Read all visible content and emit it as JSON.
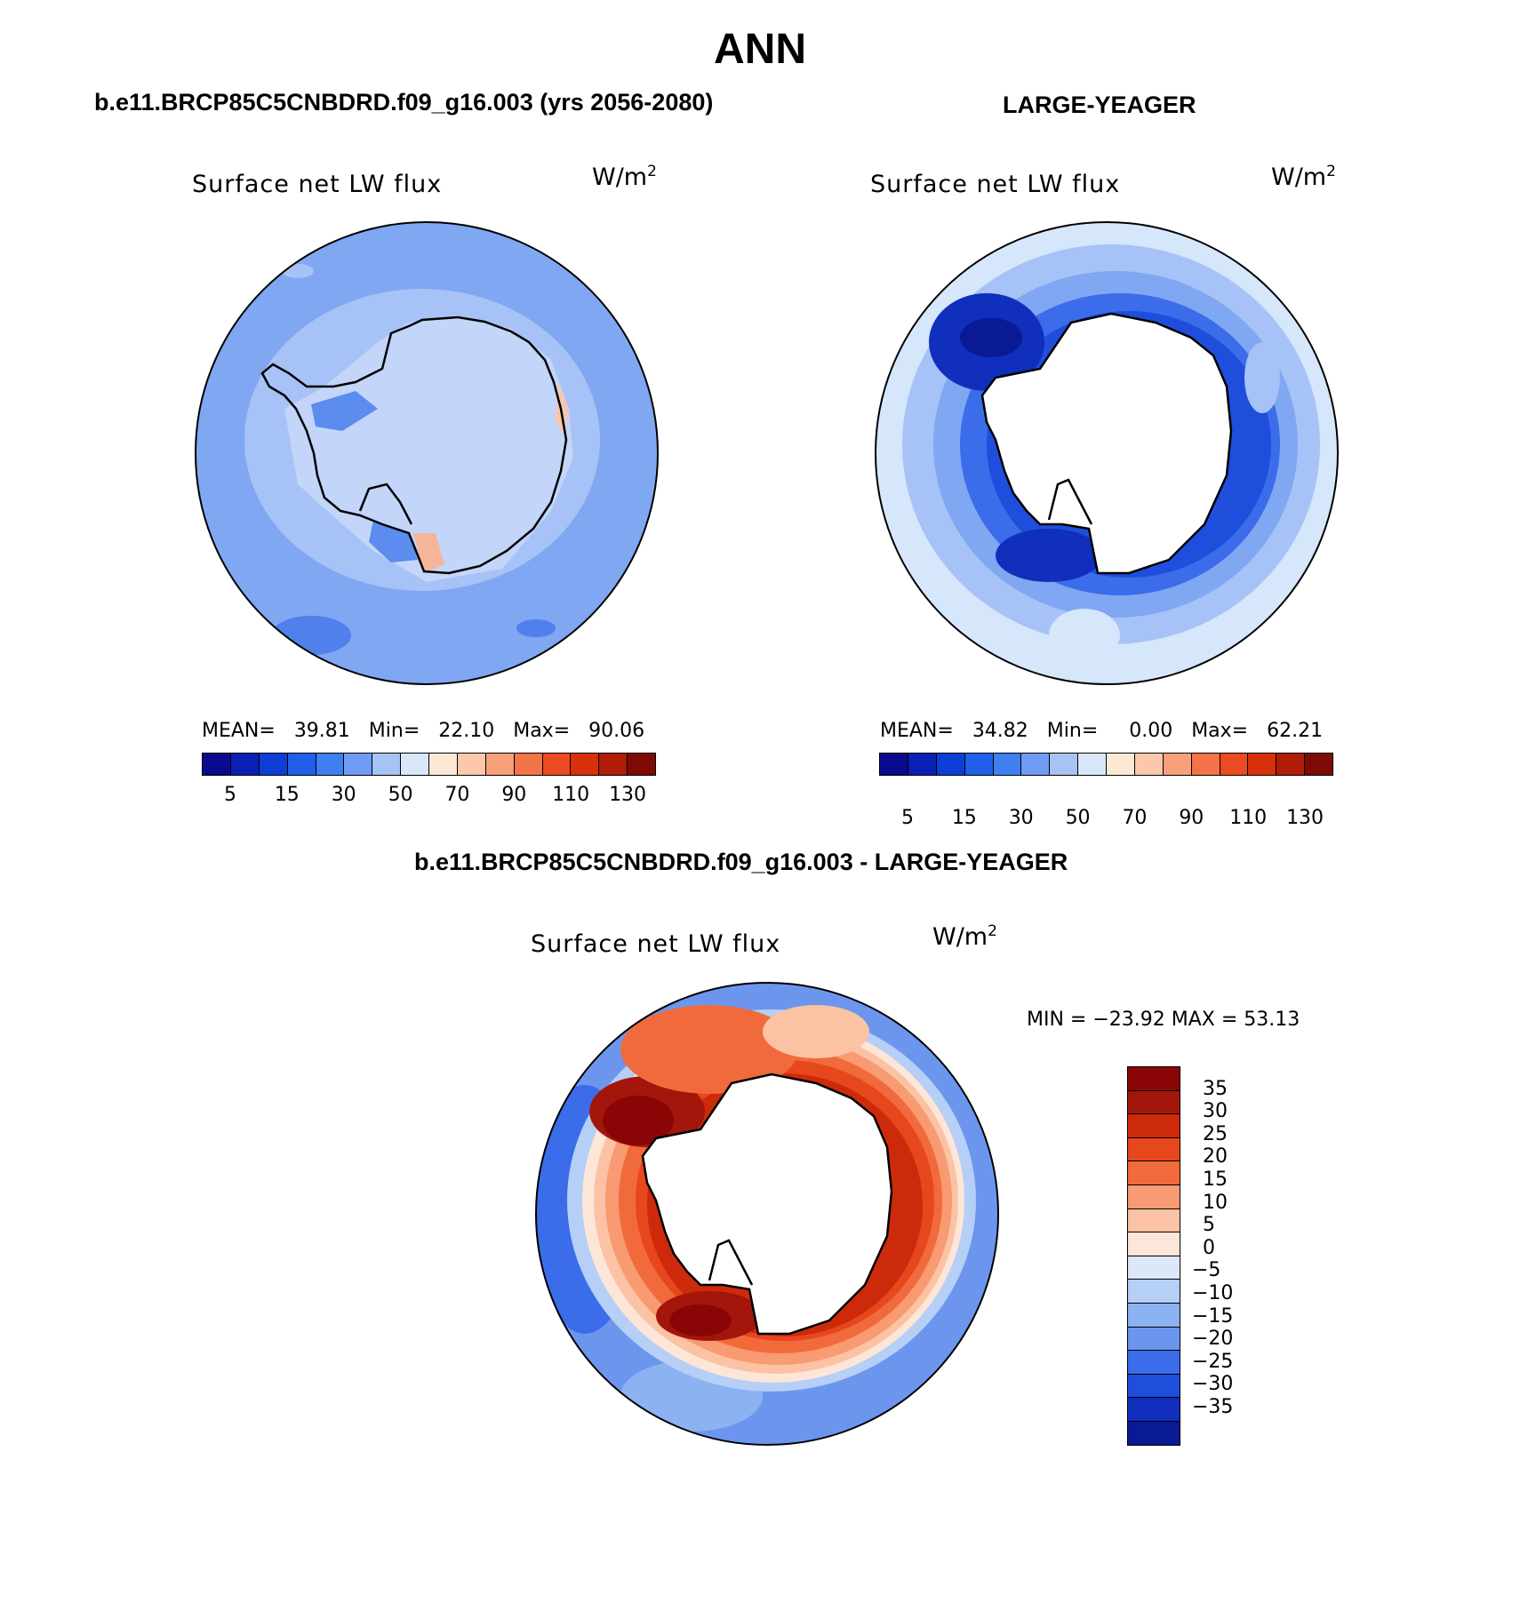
{
  "title": "ANN",
  "panels": {
    "top_left": {
      "title": "b.e11.BRCP85C5CNBDRD.f09_g16.003 (yrs 2056-2080)",
      "label": "Surface net LW flux",
      "units": "W/m",
      "units_exp": "2",
      "stats": {
        "mean_label": "MEAN=",
        "mean": "39.81",
        "min_label": "Min=",
        "min": "22.10",
        "max_label": "Max=",
        "max": "90.06"
      }
    },
    "top_right": {
      "title": "LARGE-YEAGER",
      "label": "Surface net LW flux",
      "units": "W/m",
      "units_exp": "2",
      "stats": {
        "mean_label": "MEAN=",
        "mean": "34.82",
        "min_label": "Min=",
        "min": "0.00",
        "max_label": "Max=",
        "max": "62.21"
      }
    },
    "bottom": {
      "title": "b.e11.BRCP85C5CNBDRD.f09_g16.003 - LARGE-YEAGER",
      "label": "Surface net LW flux",
      "units": "W/m",
      "units_exp": "2",
      "minmax": "MIN = −23.92 MAX =   53.13"
    }
  },
  "colorbar_top": {
    "colors": [
      "#0a0a8c",
      "#0a1fb4",
      "#0d3fd6",
      "#1f5fea",
      "#3f7ff0",
      "#6f9cf4",
      "#a6c3f6",
      "#d8e8fa",
      "#fde8d6",
      "#fcc8ac",
      "#f8a07a",
      "#f37448",
      "#ec4a22",
      "#d8300a",
      "#b01c06",
      "#7d0a04"
    ],
    "tick_labels": [
      "5",
      "15",
      "30",
      "50",
      "70",
      "90",
      "110",
      "130"
    ]
  },
  "colorbar_diff": {
    "colors": [
      "#8a0606",
      "#a3160b",
      "#cd2a0c",
      "#e6471d",
      "#f16a3c",
      "#f89a72",
      "#fbc3a4",
      "#fde6d8",
      "#dce8fa",
      "#b6cff6",
      "#8db2f2",
      "#6c96ee",
      "#3b6cea",
      "#1f4edd",
      "#0f2fbc",
      "#0a1a94"
    ],
    "tick_labels": [
      "35",
      "30",
      "25",
      "20",
      "15",
      "10",
      "5",
      "0",
      "−5",
      "−10",
      "−15",
      "−20",
      "−25",
      "−30",
      "−35"
    ]
  },
  "map_colors": {
    "ocean_light": "#d6e6fb",
    "blue1": "#a7c2f6",
    "blue2": "#7fa7f2",
    "blue3": "#5b8cee",
    "blue4": "#2f62e6",
    "blue5": "#1238c8",
    "blue6": "#0a1a94",
    "red1": "#fbd6c0",
    "red2": "#f6a07a",
    "red3": "#ee6a3c",
    "red4": "#dc3a12",
    "red5": "#b81c06",
    "red6": "#8a0606",
    "land": "#ffffff"
  }
}
